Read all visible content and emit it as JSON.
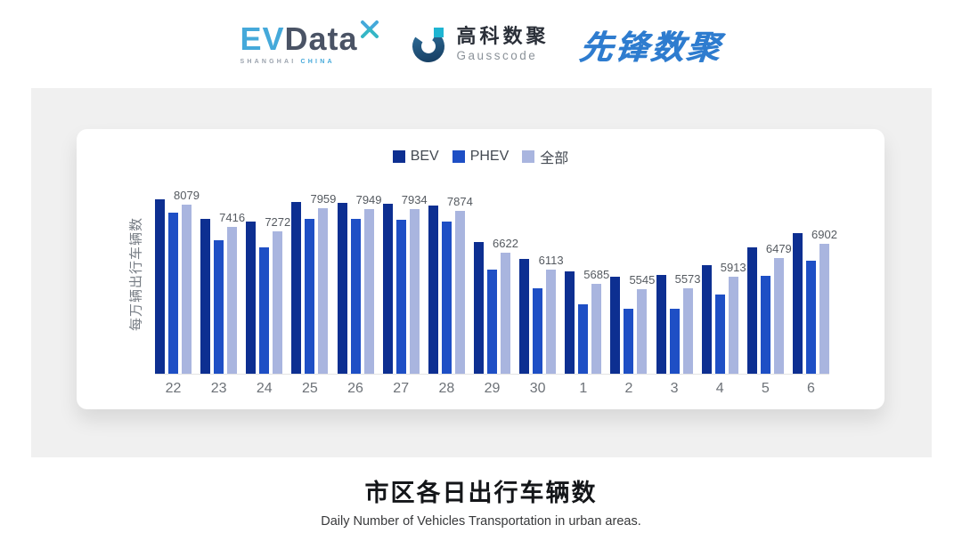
{
  "header": {
    "evdata": {
      "ev": "EV",
      "data": "Data",
      "sub_left": "SHANGHAI",
      "sub_right": "CHINA"
    },
    "gausscode": {
      "cn": "高科数聚",
      "en": "Gausscode"
    },
    "xianfeng": {
      "text": "先锋数聚"
    }
  },
  "chart_data": {
    "type": "bar",
    "title": "市区各日出行车辆数",
    "subtitle": "Daily Number of Vehicles Transportation in urban areas.",
    "ylabel": "每万辆出行车辆数",
    "categories": [
      "22",
      "23",
      "24",
      "25",
      "26",
      "27",
      "28",
      "29",
      "30",
      "1",
      "2",
      "3",
      "4",
      "5",
      "6"
    ],
    "series": [
      {
        "name": "BEV",
        "color": "#0d2f91",
        "values": [
          8230,
          7650,
          7570,
          8150,
          8130,
          8110,
          8040,
          6940,
          6450,
          6080,
          5920,
          5950,
          6250,
          6790,
          7210
        ],
        "show_labels": false
      },
      {
        "name": "PHEV",
        "color": "#1e4fc5",
        "values": [
          7830,
          6990,
          6780,
          7650,
          7640,
          7610,
          7550,
          6120,
          5550,
          5090,
          4960,
          4940,
          5370,
          5940,
          6390
        ],
        "show_labels": false
      },
      {
        "name": "全部",
        "color": "#a9b5df",
        "values": [
          8079,
          7416,
          7272,
          7959,
          7949,
          7934,
          7874,
          6622,
          6113,
          5685,
          5545,
          5573,
          5913,
          6479,
          6902
        ],
        "show_labels": true
      }
    ],
    "axis": {
      "y_min": 3000,
      "y_max": 8500,
      "grid": false,
      "legend_position": "top",
      "axis_line_color": "#e3e3e3",
      "tick_color": "#6d7278",
      "label_color": "#555a60"
    },
    "labels_on_series": "全部"
  }
}
